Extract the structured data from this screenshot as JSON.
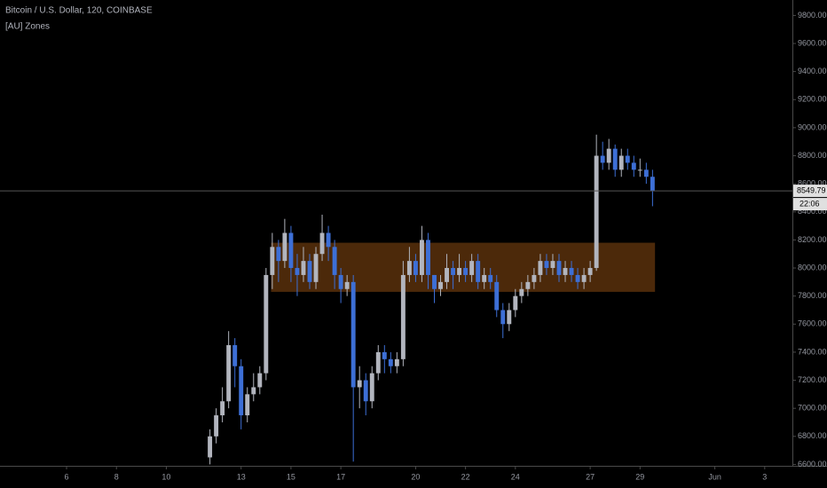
{
  "chart_data": {
    "type": "candlestick",
    "title": "Bitcoin / U.S. Dollar, 120, COINBASE",
    "indicator": "[AU] Zones",
    "countdown": "22:06",
    "up_color": "#b2b5be",
    "down_color": "#3d6fd6",
    "zone_color": "#8a4a12",
    "xlim": [
      3.33,
      35.11
    ],
    "ylim": [
      6590,
      9910
    ],
    "xticks": [
      6,
      8,
      10,
      13,
      15,
      17,
      20,
      22,
      24,
      27,
      29,
      {
        "value": 32,
        "label": "Jun"
      },
      {
        "value": 34,
        "label": "3"
      }
    ],
    "yticks": [
      {
        "value": 6600,
        "label": "6600.00"
      },
      {
        "value": 6800,
        "label": "6800.00"
      },
      {
        "value": 7000,
        "label": "7000.00"
      },
      {
        "value": 7200,
        "label": "7200.00"
      },
      {
        "value": 7400,
        "label": "7400.00"
      },
      {
        "value": 7600,
        "label": "7600.00"
      },
      {
        "value": 7800,
        "label": "7800.00"
      },
      {
        "value": 8000,
        "label": "8000.00"
      },
      {
        "value": 8200,
        "label": "8200.00"
      },
      {
        "value": 8400,
        "label": "8400.00"
      },
      {
        "value": 8600,
        "label": "8600.00"
      },
      {
        "value": 8800,
        "label": "8800.00"
      },
      {
        "value": 9000,
        "label": "9000.00"
      },
      {
        "value": 9200,
        "label": "9200.00"
      },
      {
        "value": 9400,
        "label": "9400.00"
      },
      {
        "value": 9600,
        "label": "9600.00"
      },
      {
        "value": 9800,
        "label": "9800.00"
      }
    ],
    "zone": {
      "top": 8180,
      "bottom": 7830,
      "x_start": 14.2,
      "x_end": 29.6
    },
    "x": [
      11.75,
      12,
      12.25,
      12.5,
      12.75,
      13,
      13.25,
      13.5,
      13.75,
      14,
      14.25,
      14.5,
      14.75,
      15,
      15.25,
      15.5,
      15.75,
      16,
      16.25,
      16.5,
      16.75,
      17,
      17.25,
      17.5,
      17.75,
      18,
      18.25,
      18.5,
      18.75,
      19,
      19.25,
      19.5,
      19.75,
      20,
      20.25,
      20.5,
      20.75,
      21,
      21.25,
      21.5,
      21.75,
      22,
      22.25,
      22.5,
      22.75,
      23,
      23.25,
      23.5,
      23.75,
      24,
      24.25,
      24.5,
      24.75,
      25,
      25.25,
      25.5,
      25.75,
      26,
      26.25,
      26.5,
      26.75,
      27,
      27.25,
      27.5,
      27.75,
      28,
      28.25,
      28.5,
      28.75,
      29,
      29.25,
      29.5
    ],
    "open": [
      6650,
      6800,
      6950,
      7050,
      7450,
      7300,
      6950,
      7100,
      7150,
      7250,
      7950,
      8150,
      8050,
      8250,
      8000,
      7950,
      8050,
      7900,
      8100,
      8250,
      8150,
      7950,
      7850,
      7900,
      7150,
      7200,
      7050,
      7250,
      7400,
      7350,
      7300,
      7350,
      7950,
      8050,
      7950,
      8200,
      7950,
      7850,
      7900,
      8000,
      7950,
      8000,
      7950,
      8050,
      7900,
      7950,
      7900,
      7700,
      7600,
      7700,
      7800,
      7850,
      7900,
      7950,
      8050,
      8000,
      8050,
      7950,
      8000,
      7950,
      7900,
      7950,
      8000,
      8800,
      8750,
      8850,
      8700,
      8800,
      8750,
      8700,
      8700,
      8650
    ],
    "high": [
      6850,
      7000,
      7150,
      7550,
      7500,
      7350,
      7150,
      7250,
      7300,
      8000,
      8250,
      8200,
      8350,
      8300,
      8100,
      8150,
      8100,
      8150,
      8380,
      8300,
      8200,
      8000,
      7950,
      7950,
      7300,
      7250,
      7300,
      7450,
      7450,
      7400,
      7400,
      8050,
      8150,
      8100,
      8300,
      8250,
      7950,
      7950,
      8100,
      8050,
      8100,
      8050,
      8100,
      8100,
      8000,
      8000,
      7950,
      7750,
      7750,
      7850,
      7900,
      7950,
      8000,
      8100,
      8100,
      8100,
      8100,
      8050,
      8050,
      8000,
      8000,
      8050,
      8950,
      8900,
      8920,
      8880,
      8850,
      8850,
      8800,
      8780,
      8750,
      8700
    ],
    "low": [
      6600,
      6750,
      6900,
      7000,
      7150,
      6850,
      6900,
      7050,
      7100,
      7200,
      7850,
      7900,
      8000,
      7900,
      7800,
      7900,
      7850,
      7850,
      8050,
      8050,
      7850,
      7750,
      7800,
      6620,
      7000,
      6950,
      7000,
      7200,
      7250,
      7250,
      7250,
      7300,
      7900,
      7900,
      7900,
      7850,
      7750,
      7800,
      7850,
      7850,
      7900,
      7900,
      7900,
      7850,
      7850,
      7850,
      7650,
      7500,
      7550,
      7650,
      7750,
      7800,
      7850,
      7900,
      7950,
      7950,
      7900,
      7900,
      7900,
      7850,
      7850,
      7900,
      7980,
      8700,
      8700,
      8650,
      8650,
      8700,
      8650,
      8650,
      8600,
      8440
    ],
    "close": [
      6800,
      6950,
      7050,
      7450,
      7300,
      6950,
      7100,
      7150,
      7250,
      7950,
      8150,
      8050,
      8250,
      8000,
      7950,
      8050,
      7900,
      8100,
      8250,
      8150,
      7950,
      7850,
      7900,
      7150,
      7200,
      7050,
      7250,
      7400,
      7350,
      7300,
      7350,
      7950,
      8050,
      7950,
      8200,
      7950,
      7850,
      7900,
      8000,
      7950,
      8000,
      7950,
      8050,
      7900,
      7950,
      7900,
      7700,
      7600,
      7700,
      7800,
      7850,
      7900,
      7950,
      8050,
      8000,
      8050,
      7950,
      8000,
      7950,
      7900,
      7950,
      8000,
      8800,
      8750,
      8850,
      8700,
      8800,
      8750,
      8700,
      8700,
      8650,
      8549.79
    ]
  }
}
